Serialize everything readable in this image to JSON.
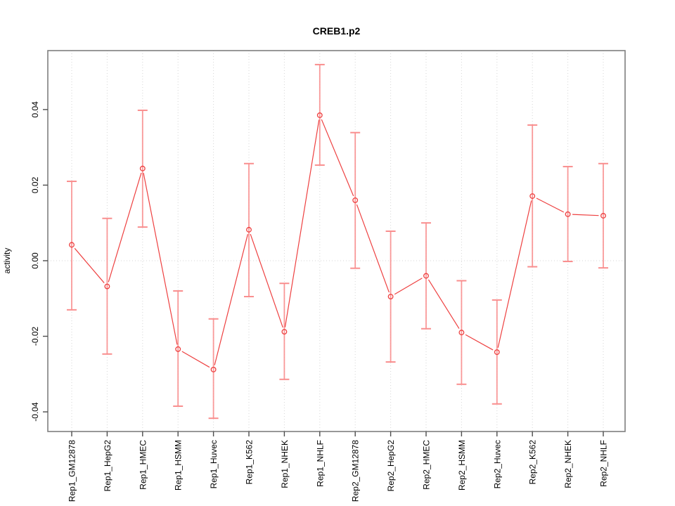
{
  "chart_data": {
    "type": "line",
    "subtype": "points-with-error-bars",
    "title": "CREB1.p2",
    "xlabel": "",
    "ylabel": "activity",
    "legend": "none",
    "grid": {
      "vertical_dotted_at_each_category": true,
      "horizontal_dotted_at": 0
    },
    "categories": [
      "Rep1_GM12878",
      "Rep1_HepG2",
      "Rep1_HMEC",
      "Rep1_HSMM",
      "Rep1_Huvec",
      "Rep1_K562",
      "Rep1_NHEK",
      "Rep1_NHLF",
      "Rep2_GM12878",
      "Rep2_HepG2",
      "Rep2_HMEC",
      "Rep2_HSMM",
      "Rep2_Huvec",
      "Rep2_K562",
      "Rep2_NHEK",
      "Rep2_NHLF"
    ],
    "series": [
      {
        "name": "activity",
        "values": [
          0.0042,
          -0.0068,
          0.0244,
          -0.0234,
          -0.0288,
          0.0082,
          -0.0188,
          0.0385,
          0.016,
          -0.0095,
          -0.004,
          -0.019,
          -0.0242,
          0.0171,
          0.0123,
          0.0119
        ],
        "upper": [
          0.021,
          0.0112,
          0.0398,
          -0.008,
          -0.0154,
          0.0257,
          -0.006,
          0.0519,
          0.0339,
          0.0078,
          0.01,
          -0.0053,
          -0.0104,
          0.0359,
          0.0249,
          0.0257
        ],
        "lower": [
          -0.013,
          -0.0247,
          0.0089,
          -0.0385,
          -0.0417,
          -0.0095,
          -0.0314,
          0.0253,
          -0.002,
          -0.0268,
          -0.018,
          -0.0327,
          -0.0379,
          -0.0016,
          -0.0002,
          -0.0019
        ]
      }
    ],
    "yticks": [
      -0.04,
      -0.02,
      0,
      0.02,
      0.04
    ],
    "ytick_labels": [
      "-0.04",
      "-0.02",
      "0.00",
      "0.02",
      "0.04"
    ],
    "ylim": [
      -0.0452,
      0.0556
    ],
    "colors": {
      "point_line": "#ee4040",
      "error_bar": "#f98e8e",
      "grid": "#d6d6d6",
      "box": "#7f7f7f",
      "tick": "#4d4d4d",
      "text": "#000000",
      "background": "#ffffff"
    }
  }
}
